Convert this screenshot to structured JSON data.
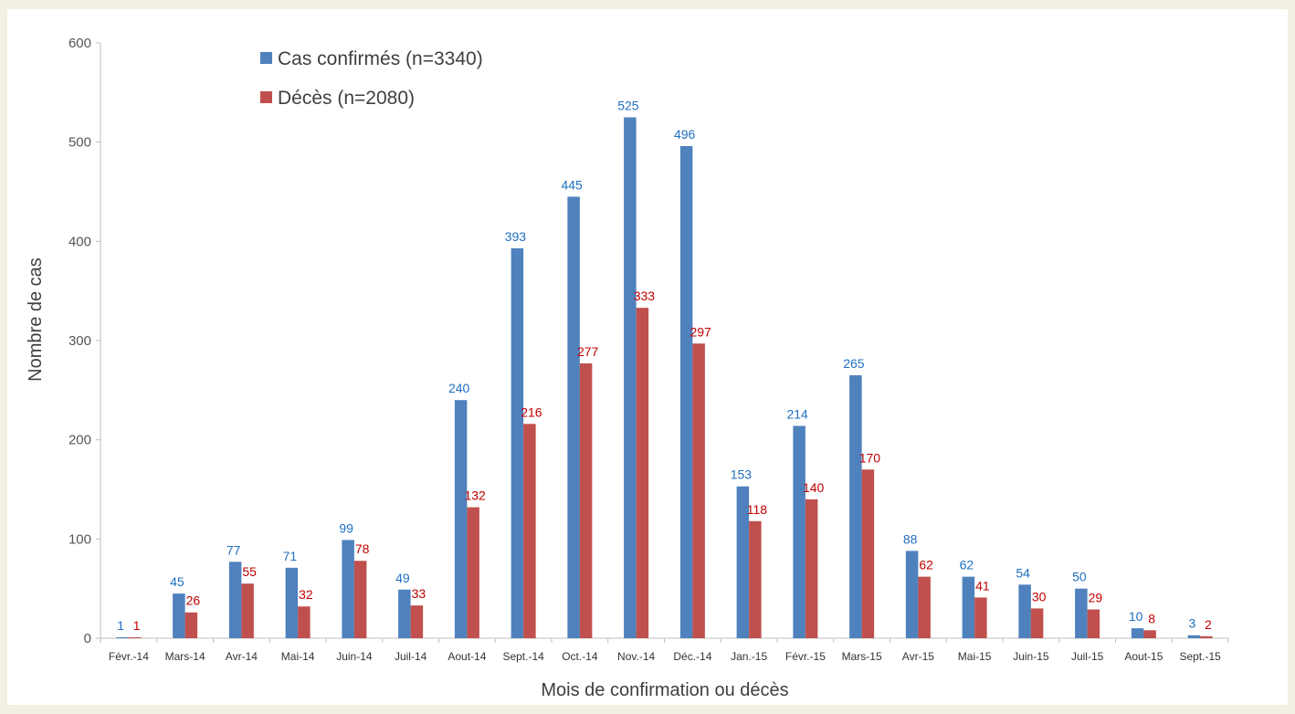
{
  "chart_data": {
    "type": "bar",
    "title": "",
    "xlabel": "Mois de confirmation ou décès",
    "ylabel": "Nombre de cas",
    "ylim": [
      0,
      600
    ],
    "yticks": [
      0,
      100,
      200,
      300,
      400,
      500,
      600
    ],
    "categories": [
      "Févr.-14",
      "Mars-14",
      "Avr-14",
      "Mai-14",
      "Juin-14",
      "Juil-14",
      "Aout-14",
      "Sept.-14",
      "Oct.-14",
      "Nov.-14",
      "Déc.-14",
      "Jan.-15",
      "Févr.-15",
      "Mars-15",
      "Avr-15",
      "Mai-15",
      "Juin-15",
      "Juil-15",
      "Aout-15",
      "Sept.-15"
    ],
    "series": [
      {
        "name": "Cas confirmés (n=3340)",
        "color": "#4f81bd",
        "label_color": "#1f6fbf",
        "values": [
          1,
          45,
          77,
          71,
          99,
          49,
          240,
          393,
          445,
          525,
          496,
          153,
          214,
          265,
          88,
          62,
          54,
          50,
          10,
          3
        ]
      },
      {
        "name": "Décès (n=2080)",
        "color": "#c0504d",
        "label_color": "#c00000",
        "values": [
          1,
          26,
          55,
          32,
          78,
          33,
          132,
          216,
          277,
          333,
          297,
          118,
          140,
          170,
          62,
          41,
          30,
          29,
          8,
          2
        ]
      }
    ],
    "legend_position": "top-left",
    "grid": false
  }
}
